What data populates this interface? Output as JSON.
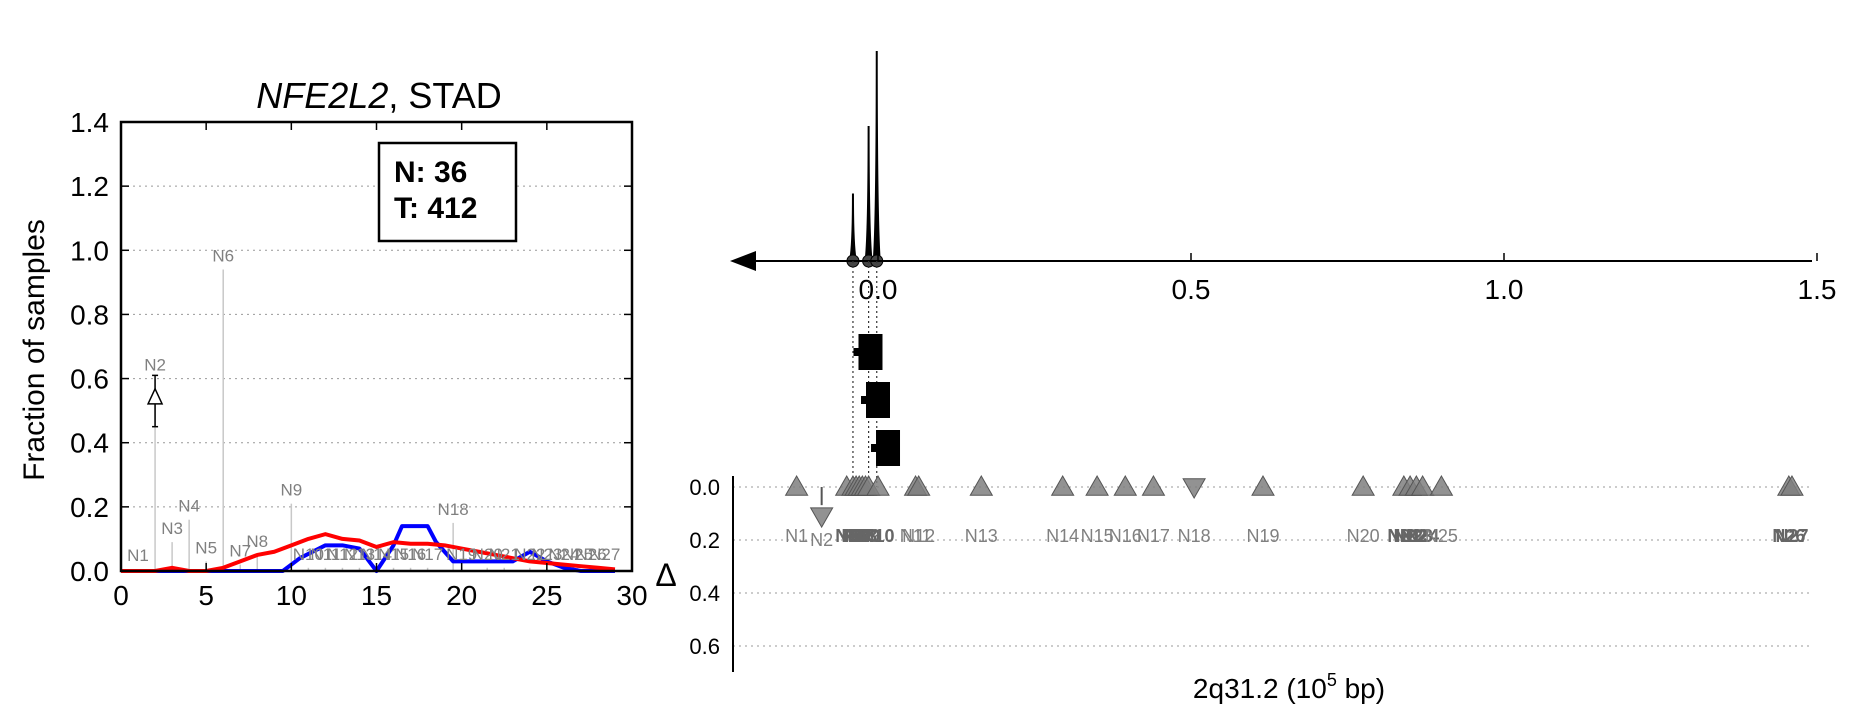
{
  "chart_data": [
    {
      "type": "line",
      "title_italic": "NFE2L2",
      "title_rest": ", STAD",
      "ylabel": "Fraction of samples",
      "xlim": [
        0,
        30
      ],
      "ylim": [
        0,
        1.4
      ],
      "xticks": [
        "0",
        "5",
        "10",
        "15",
        "20",
        "25",
        "30"
      ],
      "yticks": [
        "0.0",
        "0.2",
        "0.4",
        "0.6",
        "0.8",
        "1.0",
        "1.2",
        "1.4"
      ],
      "grid": "horizontal dotted",
      "legend_box": {
        "n_label": "N: 36",
        "t_label": "T: 412",
        "placement": "top-right"
      },
      "delta_marker": {
        "x": 2,
        "y": 0.54,
        "err_low": 0.45,
        "err_high": 0.61
      },
      "points": [
        {
          "name": "N1",
          "x": 1,
          "y": 0.0
        },
        {
          "name": "N2",
          "x": 2,
          "y": 0.6
        },
        {
          "name": "N3",
          "x": 3,
          "y": 0.09
        },
        {
          "name": "N4",
          "x": 4,
          "y": 0.16
        },
        {
          "name": "N5",
          "x": 5,
          "y": 0.03
        },
        {
          "name": "N6",
          "x": 6,
          "y": 0.94
        },
        {
          "name": "N7",
          "x": 7,
          "y": 0.02
        },
        {
          "name": "N8",
          "x": 8,
          "y": 0.05
        },
        {
          "name": "N9",
          "x": 10,
          "y": 0.21
        },
        {
          "name": "N10",
          "x": 11,
          "y": 0.01
        },
        {
          "name": "N11",
          "x": 12,
          "y": 0.01
        },
        {
          "name": "N12",
          "x": 13,
          "y": 0.01
        },
        {
          "name": "N13",
          "x": 14,
          "y": 0.01
        },
        {
          "name": "N14",
          "x": 15,
          "y": 0.01
        },
        {
          "name": "N15",
          "x": 16,
          "y": 0.01
        },
        {
          "name": "N16",
          "x": 17,
          "y": 0.01
        },
        {
          "name": "N17",
          "x": 18,
          "y": 0.01
        },
        {
          "name": "N18",
          "x": 19.5,
          "y": 0.15
        },
        {
          "name": "N19",
          "x": 20,
          "y": 0.01
        },
        {
          "name": "N20",
          "x": 21.5,
          "y": 0.01
        },
        {
          "name": "N21",
          "x": 22.5,
          "y": 0.01
        },
        {
          "name": "N22",
          "x": 24,
          "y": 0.01
        },
        {
          "name": "N23",
          "x": 25,
          "y": 0.01
        },
        {
          "name": "N24",
          "x": 26,
          "y": 0.01
        },
        {
          "name": "N25",
          "x": 26.8,
          "y": 0.01
        },
        {
          "name": "N26",
          "x": 27.6,
          "y": 0.01
        },
        {
          "name": "N27",
          "x": 28.4,
          "y": 0.01
        }
      ],
      "series": [
        {
          "color": "#0000ff",
          "x": [
            0,
            2,
            4,
            6,
            8,
            9.5,
            10.5,
            12,
            13,
            14,
            15,
            16,
            16.5,
            18,
            18.5,
            19.5,
            21,
            22,
            23,
            24,
            25,
            26,
            27,
            28,
            29
          ],
          "y": [
            0,
            0,
            0,
            0,
            0,
            0,
            0.04,
            0.08,
            0.08,
            0.07,
            0.0,
            0.08,
            0.14,
            0.14,
            0.09,
            0.03,
            0.03,
            0.03,
            0.03,
            0.06,
            0.03,
            0.01,
            0.0,
            0.0,
            0.0
          ]
        },
        {
          "color": "#ff0000",
          "x": [
            0,
            2,
            3,
            4,
            5,
            6,
            7,
            8,
            9,
            10,
            11,
            12,
            13,
            14,
            15,
            16,
            17,
            18,
            19,
            20,
            21,
            22,
            23,
            24,
            25,
            26,
            27,
            28,
            29
          ],
          "y": [
            0,
            0,
            0.01,
            0,
            0,
            0.01,
            0.03,
            0.05,
            0.06,
            0.08,
            0.1,
            0.115,
            0.1,
            0.095,
            0.075,
            0.09,
            0.085,
            0.085,
            0.08,
            0.07,
            0.06,
            0.05,
            0.04,
            0.03,
            0.025,
            0.02,
            0.015,
            0.01,
            0.005
          ]
        }
      ]
    },
    {
      "type": "scatter",
      "xlabel_prefix": "2q31.2 (10",
      "xlabel_sup": "5",
      "xlabel_suffix": " bp)",
      "delta_label": "Δ",
      "top_axis_ticks": [
        "0.0",
        "0.5",
        "1.0",
        "1.5"
      ],
      "top_axis_tick_values": [
        0.0,
        0.5,
        1.0,
        1.5
      ],
      "lower_yticks": [
        "0.0",
        "0.2",
        "0.4",
        "0.6"
      ],
      "lower_ytick_values": [
        0.0,
        0.2,
        0.4,
        0.6
      ],
      "peaks": [
        {
          "x": -0.04,
          "height": 0.45
        },
        {
          "x": -0.015,
          "height": 0.9
        },
        {
          "x": -0.002,
          "height": 1.4
        }
      ],
      "domains": [
        {
          "x": -0.012
        },
        {
          "x": 0.0
        },
        {
          "x": 0.016
        }
      ],
      "mutations": [
        {
          "name": "N1",
          "x": -0.13,
          "y": 0.0,
          "up": true
        },
        {
          "name": "N2",
          "x": -0.09,
          "y": 0.11,
          "up": false,
          "stem": 0.04
        },
        {
          "name": "N3",
          "x": -0.05,
          "y": 0.0,
          "up": true
        },
        {
          "name": "N4",
          "x": -0.04,
          "y": 0.0,
          "up": true
        },
        {
          "name": "N5",
          "x": -0.035,
          "y": 0.0,
          "up": true
        },
        {
          "name": "N6",
          "x": -0.03,
          "y": 0.0,
          "up": true
        },
        {
          "name": "N7",
          "x": -0.025,
          "y": 0.0,
          "up": true
        },
        {
          "name": "N8",
          "x": -0.02,
          "y": 0.0,
          "up": true
        },
        {
          "name": "N9",
          "x": -0.015,
          "y": 0.0,
          "up": true
        },
        {
          "name": "N10",
          "x": 0.0,
          "y": 0.0,
          "up": true
        },
        {
          "name": "N11",
          "x": 0.06,
          "y": 0.0,
          "up": true
        },
        {
          "name": "N12",
          "x": 0.065,
          "y": 0.0,
          "up": true
        },
        {
          "name": "N13",
          "x": 0.165,
          "y": 0.0,
          "up": true
        },
        {
          "name": "N14",
          "x": 0.295,
          "y": 0.0,
          "up": true
        },
        {
          "name": "N15",
          "x": 0.35,
          "y": 0.0,
          "up": true
        },
        {
          "name": "N16",
          "x": 0.395,
          "y": 0.0,
          "up": true
        },
        {
          "name": "N17",
          "x": 0.44,
          "y": 0.0,
          "up": true
        },
        {
          "name": "N18",
          "x": 0.505,
          "y": 0.0,
          "up": false
        },
        {
          "name": "N19",
          "x": 0.615,
          "y": 0.0,
          "up": true
        },
        {
          "name": "N20",
          "x": 0.775,
          "y": 0.0,
          "up": true
        },
        {
          "name": "N21",
          "x": 0.84,
          "y": 0.0,
          "up": true
        },
        {
          "name": "N22",
          "x": 0.85,
          "y": 0.0,
          "up": true
        },
        {
          "name": "N23",
          "x": 0.86,
          "y": 0.0,
          "up": true
        },
        {
          "name": "N24",
          "x": 0.87,
          "y": 0.0,
          "up": true
        },
        {
          "name": "N25",
          "x": 0.9,
          "y": 0.0,
          "up": true
        },
        {
          "name": "N26",
          "x": 1.455,
          "y": 0.0,
          "up": true
        },
        {
          "name": "N27",
          "x": 1.46,
          "y": 0.0,
          "up": true
        }
      ]
    }
  ]
}
